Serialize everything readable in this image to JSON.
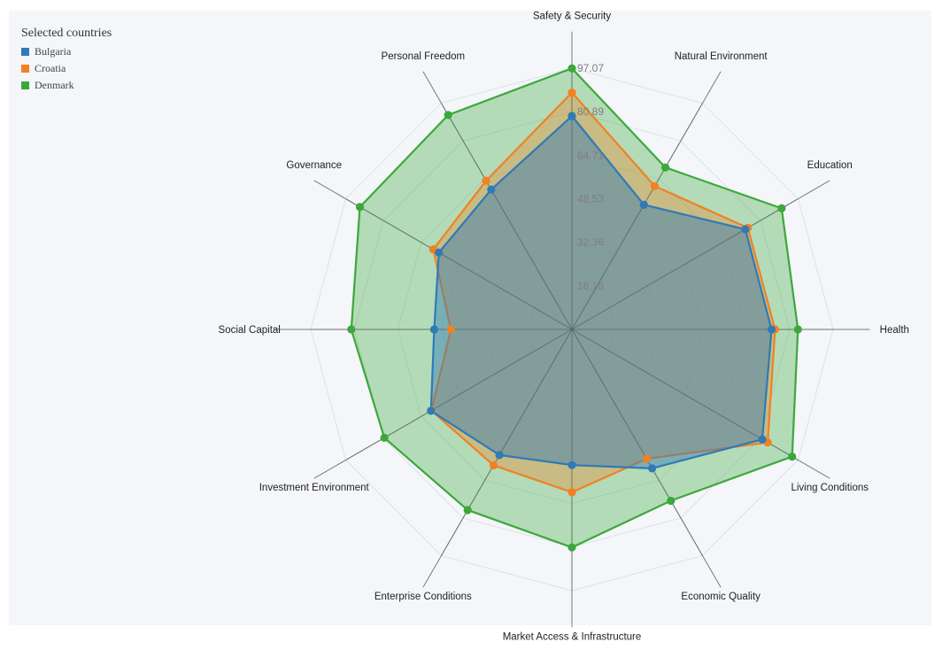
{
  "legend": {
    "title": "Selected countries",
    "items": [
      {
        "label": "Bulgaria",
        "color": "#2f7ab7"
      },
      {
        "label": "Croatia",
        "color": "#f08124"
      },
      {
        "label": "Denmark",
        "color": "#3ca83c"
      }
    ]
  },
  "chart_data": {
    "type": "radar",
    "categories": [
      "Safety & Security",
      "Natural Environment",
      "Education",
      "Health",
      "Living Conditions",
      "Economic Quality",
      "Market Access & Infrastructure",
      "Enterprise Conditions",
      "Investment Environment",
      "Social Capital",
      "Governance",
      "Personal Freedom"
    ],
    "radial_ticks": [
      "16.18",
      "32.36",
      "48.53",
      "64.71",
      "80.89",
      "97.07"
    ],
    "rmax": 97.07,
    "series": [
      {
        "name": "Bulgaria",
        "color": "#2f7ab7",
        "values": [
          79.3,
          53.5,
          74.4,
          74.2,
          81.7,
          59.6,
          50.4,
          53.9,
          60.5,
          51.2,
          57.1,
          60.0
        ]
      },
      {
        "name": "Croatia",
        "color": "#f08124",
        "values": [
          88.0,
          61.5,
          75.5,
          75.5,
          84.0,
          55.5,
          60.5,
          58.3,
          60.3,
          45.0,
          59.5,
          63.8
        ]
      },
      {
        "name": "Denmark",
        "color": "#3ca83c",
        "values": [
          97.0,
          69.5,
          90.0,
          84.0,
          94.5,
          73.5,
          81.0,
          77.5,
          80.5,
          82.0,
          91.0,
          92.0
        ]
      }
    ]
  }
}
